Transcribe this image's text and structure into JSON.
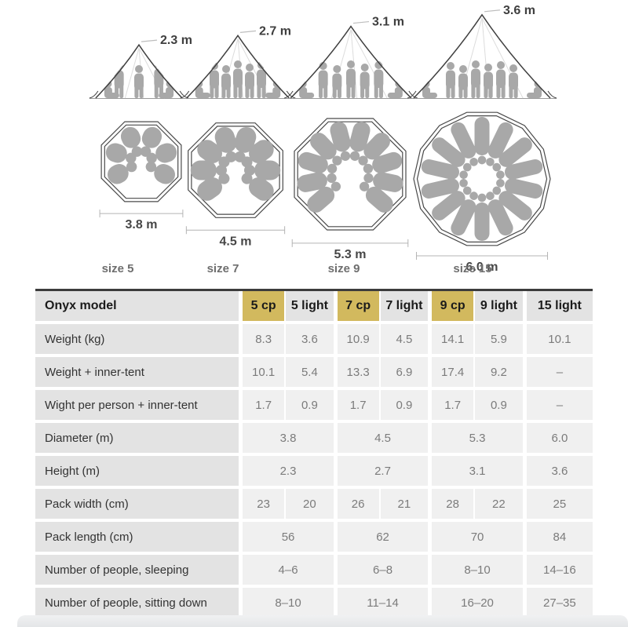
{
  "illustration": {
    "tents": [
      {
        "size_label": "size 5",
        "height_label": "2.3 m",
        "diameter_label": "3.8 m",
        "height_m": 2.3,
        "diameter_m": 3.8,
        "plan_sides": 8,
        "sleeping_bags": 6,
        "full_circle": false,
        "standing_figures": 3,
        "seated_figures": 2
      },
      {
        "size_label": "size 7",
        "height_label": "2.7 m",
        "diameter_label": "4.5 m",
        "height_m": 2.7,
        "diameter_m": 4.5,
        "plan_sides": 8,
        "sleeping_bags": 8,
        "full_circle": false,
        "standing_figures": 5,
        "seated_figures": 2
      },
      {
        "size_label": "size 9",
        "height_label": "3.1 m",
        "diameter_label": "5.3 m",
        "height_m": 3.1,
        "diameter_m": 5.3,
        "plan_sides": 8,
        "sleeping_bags": 10,
        "full_circle": false,
        "standing_figures": 5,
        "seated_figures": 2
      },
      {
        "size_label": "size 15",
        "height_label": "3.6 m",
        "diameter_label": "6.0 m",
        "height_m": 3.6,
        "diameter_m": 6.0,
        "plan_sides": 14,
        "sleeping_bags": 14,
        "full_circle": true,
        "standing_figures": 6,
        "seated_figures": 2
      }
    ],
    "colors": {
      "figure": "#a8a8a8",
      "tent_outline": "#404040",
      "faint_pole": "#dcdcdc",
      "ground_line": "#9b9b9b",
      "dimension_line": "#b4b4b4",
      "dimension_text": "#474747",
      "height_text": "#3f3f3f",
      "size_text": "#6e6e6e",
      "plan_outline": "#4a4a4a"
    }
  },
  "table": {
    "model_header": "Onyx model",
    "highlight_color": "#d2b95e",
    "columns": [
      {
        "label": "5 cp",
        "highlight": true
      },
      {
        "label": "5 light",
        "highlight": false
      },
      {
        "label": "7 cp",
        "highlight": true
      },
      {
        "label": "7 light",
        "highlight": false
      },
      {
        "label": "9 cp",
        "highlight": true
      },
      {
        "label": "9 light",
        "highlight": false
      },
      {
        "label": "15 light",
        "highlight": false
      }
    ],
    "rows": [
      {
        "label": "Weight (kg)",
        "span": 1,
        "values": [
          "8.3",
          "3.6",
          "10.9",
          "4.5",
          "14.1",
          "5.9",
          "10.1"
        ]
      },
      {
        "label": "Weight + inner-tent",
        "span": 1,
        "values": [
          "10.1",
          "5.4",
          "13.3",
          "6.9",
          "17.4",
          "9.2",
          "–"
        ]
      },
      {
        "label": "Wight per person + inner-tent",
        "span": 1,
        "values": [
          "1.7",
          "0.9",
          "1.7",
          "0.9",
          "1.7",
          "0.9",
          "–"
        ]
      },
      {
        "label": "Diameter (m)",
        "span": 2,
        "values": [
          "3.8",
          "4.5",
          "5.3",
          "6.0"
        ]
      },
      {
        "label": "Height (m)",
        "span": 2,
        "values": [
          "2.3",
          "2.7",
          "3.1",
          "3.6"
        ]
      },
      {
        "label": "Pack width (cm)",
        "span": 1,
        "values": [
          "23",
          "20",
          "26",
          "21",
          "28",
          "22",
          "25"
        ]
      },
      {
        "label": "Pack length (cm)",
        "span": 2,
        "values": [
          "56",
          "62",
          "70",
          "84"
        ]
      },
      {
        "label": "Number of people, sleeping",
        "span": 2,
        "values": [
          "4–6",
          "6–8",
          "8–10",
          "14–16"
        ]
      },
      {
        "label": "Number of people, sitting down",
        "span": 2,
        "values": [
          "8–10",
          "11–14",
          "16–20",
          "27–35"
        ]
      }
    ]
  }
}
